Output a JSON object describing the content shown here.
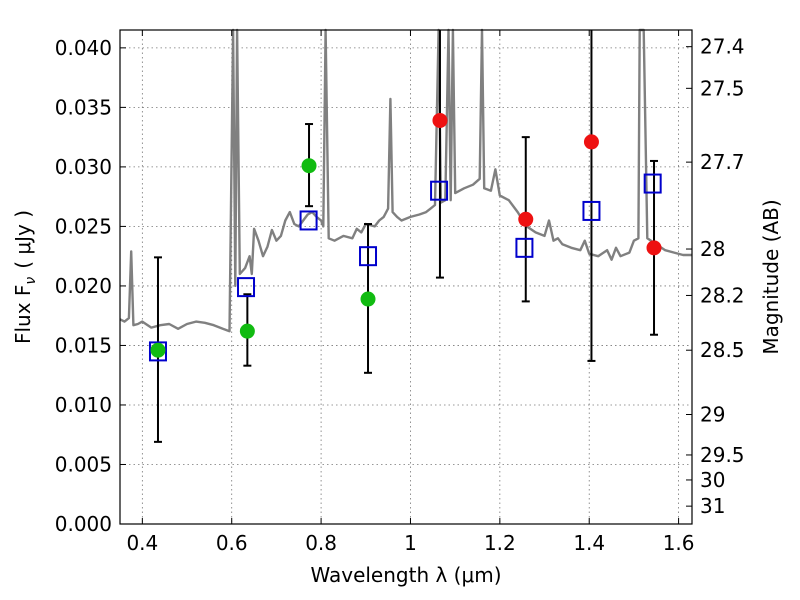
{
  "chart_data": {
    "type": "scatter",
    "xlabel": "Wavelength  λ (μm)",
    "ylabel": "Flux  F",
    "ylabel_sub": "ν",
    "ylabel_unit": "( μJy )",
    "y2label": "Magnitude (AB)",
    "xlim": [
      0.35,
      1.63
    ],
    "ylim": [
      0.0,
      0.0415
    ],
    "grid": true,
    "x_ticks": [
      0.4,
      0.6,
      0.8,
      1.0,
      1.2,
      1.4,
      1.6
    ],
    "x_tick_labels": [
      "0.4",
      "0.6",
      "0.8",
      "1",
      "1.2",
      "1.4",
      "1.6"
    ],
    "y_ticks": [
      0.0,
      0.005,
      0.01,
      0.015,
      0.02,
      0.025,
      0.03,
      0.035,
      0.04
    ],
    "y_tick_labels": [
      "0.000",
      "0.005",
      "0.010",
      "0.015",
      "0.020",
      "0.025",
      "0.030",
      "0.035",
      "0.040"
    ],
    "y2_ticks": [
      {
        "label": "27.4",
        "flux": 0.0401
      },
      {
        "label": "27.5",
        "flux": 0.0366
      },
      {
        "label": "27.7",
        "flux": 0.0304
      },
      {
        "label": "28",
        "flux": 0.0231
      },
      {
        "label": "28.2",
        "flux": 0.0192
      },
      {
        "label": "28.5",
        "flux": 0.0146
      },
      {
        "label": "29",
        "flux": 0.0092
      },
      {
        "label": "29.5",
        "flux": 0.0058
      },
      {
        "label": "30",
        "flux": 0.0037
      },
      {
        "label": "31",
        "flux": 0.0015
      }
    ],
    "colors": {
      "spectrum": "#808080",
      "model": "#0000cc",
      "short": "#11bb11",
      "long": "#ee1111",
      "error": "#000000"
    },
    "spectrum": [
      [
        0.35,
        0.0172
      ],
      [
        0.36,
        0.017
      ],
      [
        0.37,
        0.0173
      ],
      [
        0.375,
        0.0229
      ],
      [
        0.38,
        0.0167
      ],
      [
        0.39,
        0.0168
      ],
      [
        0.4,
        0.017
      ],
      [
        0.42,
        0.0165
      ],
      [
        0.44,
        0.0167
      ],
      [
        0.46,
        0.0168
      ],
      [
        0.48,
        0.0164
      ],
      [
        0.5,
        0.0168
      ],
      [
        0.52,
        0.017
      ],
      [
        0.54,
        0.0169
      ],
      [
        0.56,
        0.0167
      ],
      [
        0.58,
        0.0164
      ],
      [
        0.595,
        0.0162
      ],
      [
        0.603,
        0.0415
      ],
      [
        0.608,
        0.02
      ],
      [
        0.612,
        0.0415
      ],
      [
        0.618,
        0.021
      ],
      [
        0.63,
        0.0215
      ],
      [
        0.64,
        0.0225
      ],
      [
        0.645,
        0.021
      ],
      [
        0.65,
        0.0248
      ],
      [
        0.66,
        0.0238
      ],
      [
        0.67,
        0.0225
      ],
      [
        0.68,
        0.0233
      ],
      [
        0.69,
        0.0247
      ],
      [
        0.7,
        0.0238
      ],
      [
        0.71,
        0.0242
      ],
      [
        0.72,
        0.0255
      ],
      [
        0.73,
        0.0262
      ],
      [
        0.74,
        0.0252
      ],
      [
        0.75,
        0.025
      ],
      [
        0.76,
        0.0255
      ],
      [
        0.77,
        0.026
      ],
      [
        0.78,
        0.0262
      ],
      [
        0.79,
        0.0258
      ],
      [
        0.8,
        0.0255
      ],
      [
        0.805,
        0.025
      ],
      [
        0.81,
        0.0415
      ],
      [
        0.817,
        0.024
      ],
      [
        0.83,
        0.0238
      ],
      [
        0.85,
        0.0242
      ],
      [
        0.87,
        0.024
      ],
      [
        0.88,
        0.0248
      ],
      [
        0.89,
        0.0245
      ],
      [
        0.9,
        0.0252
      ],
      [
        0.92,
        0.025
      ],
      [
        0.93,
        0.0255
      ],
      [
        0.94,
        0.0258
      ],
      [
        0.95,
        0.0265
      ],
      [
        0.955,
        0.0357
      ],
      [
        0.96,
        0.0262
      ],
      [
        0.97,
        0.0258
      ],
      [
        0.98,
        0.0255
      ],
      [
        1.0,
        0.0258
      ],
      [
        1.02,
        0.026
      ],
      [
        1.035,
        0.0262
      ],
      [
        1.045,
        0.0265
      ],
      [
        1.055,
        0.0268
      ],
      [
        1.063,
        0.0415
      ],
      [
        1.068,
        0.027
      ],
      [
        1.078,
        0.0272
      ],
      [
        1.085,
        0.0415
      ],
      [
        1.09,
        0.0272
      ],
      [
        1.095,
        0.0415
      ],
      [
        1.1,
        0.0278
      ],
      [
        1.12,
        0.0282
      ],
      [
        1.14,
        0.0285
      ],
      [
        1.155,
        0.029
      ],
      [
        1.16,
        0.0415
      ],
      [
        1.165,
        0.0282
      ],
      [
        1.18,
        0.028
      ],
      [
        1.19,
        0.0298
      ],
      [
        1.2,
        0.0276
      ],
      [
        1.22,
        0.0272
      ],
      [
        1.24,
        0.0262
      ],
      [
        1.26,
        0.025
      ],
      [
        1.28,
        0.0245
      ],
      [
        1.3,
        0.0242
      ],
      [
        1.31,
        0.0255
      ],
      [
        1.32,
        0.0238
      ],
      [
        1.33,
        0.024
      ],
      [
        1.34,
        0.0235
      ],
      [
        1.36,
        0.0232
      ],
      [
        1.38,
        0.023
      ],
      [
        1.39,
        0.0238
      ],
      [
        1.4,
        0.0227
      ],
      [
        1.42,
        0.0225
      ],
      [
        1.44,
        0.023
      ],
      [
        1.45,
        0.0222
      ],
      [
        1.46,
        0.0232
      ],
      [
        1.47,
        0.0225
      ],
      [
        1.49,
        0.0228
      ],
      [
        1.5,
        0.0238
      ],
      [
        1.51,
        0.024
      ],
      [
        1.513,
        0.0415
      ],
      [
        1.522,
        0.0415
      ],
      [
        1.53,
        0.024
      ],
      [
        1.55,
        0.0235
      ],
      [
        1.57,
        0.023
      ],
      [
        1.59,
        0.0228
      ],
      [
        1.61,
        0.0226
      ],
      [
        1.63,
        0.0226
      ]
    ],
    "model_points": [
      {
        "x": 0.435,
        "y": 0.0145
      },
      {
        "x": 0.632,
        "y": 0.0199
      },
      {
        "x": 0.772,
        "y": 0.0255
      },
      {
        "x": 0.905,
        "y": 0.0225
      },
      {
        "x": 1.064,
        "y": 0.028
      },
      {
        "x": 1.255,
        "y": 0.0232
      },
      {
        "x": 1.405,
        "y": 0.0263
      },
      {
        "x": 1.542,
        "y": 0.0286
      }
    ],
    "observed_short": [
      {
        "x": 0.435,
        "y": 0.0146,
        "err_lo": 0.0069,
        "err_hi": 0.0224
      },
      {
        "x": 0.635,
        "y": 0.0162,
        "err_lo": 0.0133,
        "err_hi": 0.0193
      },
      {
        "x": 0.773,
        "y": 0.0301,
        "err_lo": 0.0267,
        "err_hi": 0.0336
      },
      {
        "x": 0.905,
        "y": 0.0189,
        "err_lo": 0.0127,
        "err_hi": 0.0252
      }
    ],
    "observed_long": [
      {
        "x": 1.066,
        "y": 0.0339,
        "err_lo": 0.0207,
        "err_hi": 0.0415
      },
      {
        "x": 1.258,
        "y": 0.0256,
        "err_lo": 0.0187,
        "err_hi": 0.0325
      },
      {
        "x": 1.405,
        "y": 0.0321,
        "err_lo": 0.0137,
        "err_hi": 0.0415
      },
      {
        "x": 1.545,
        "y": 0.0232,
        "err_lo": 0.0159,
        "err_hi": 0.0305
      }
    ]
  }
}
